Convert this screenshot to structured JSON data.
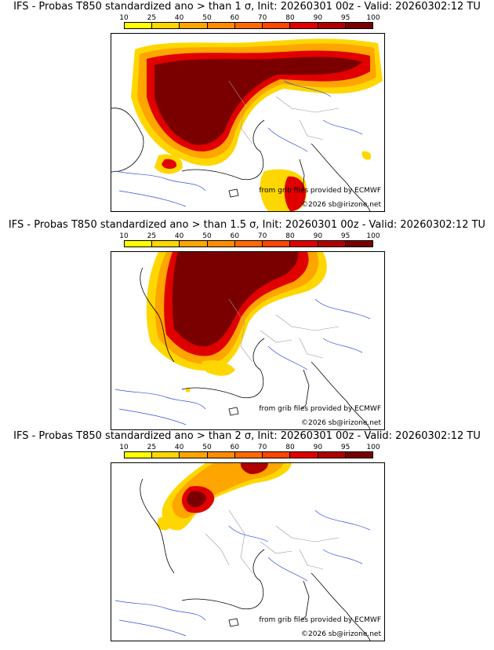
{
  "colorbar": {
    "ticks": [
      "10",
      "25",
      "40",
      "50",
      "60",
      "70",
      "80",
      "90",
      "95",
      "100"
    ],
    "colors": [
      "#ffff00",
      "#ffd700",
      "#ffa500",
      "#ff8c00",
      "#ff6a00",
      "#ff4500",
      "#e00000",
      "#b00000",
      "#7a0000"
    ]
  },
  "panels": [
    {
      "title": "IFS - Probas T850  standardized ano > than 1 σ, Init: 20260301 00z - Valid: 20260302:12 TU",
      "source_credit": "from grib files provided by ECMWF",
      "copyright": "©2026 sb@irizone.net",
      "threshold_sigma": 1
    },
    {
      "title": "IFS - Probas T850  standardized ano > than 1.5 σ, Init: 20260301 00z - Valid: 20260302:12 TU",
      "source_credit": "from grib files provided by ECMWF",
      "copyright": "©2026 sb@irizone.net",
      "threshold_sigma": 1.5
    },
    {
      "title": "IFS - Probas T850  standardized ano > than 2 σ, Init: 20260301 00z - Valid: 20260302:12 TU",
      "source_credit": "from grib files provided by ECMWF",
      "copyright": "©2026 sb@irizone.net",
      "threshold_sigma": 2
    }
  ]
}
